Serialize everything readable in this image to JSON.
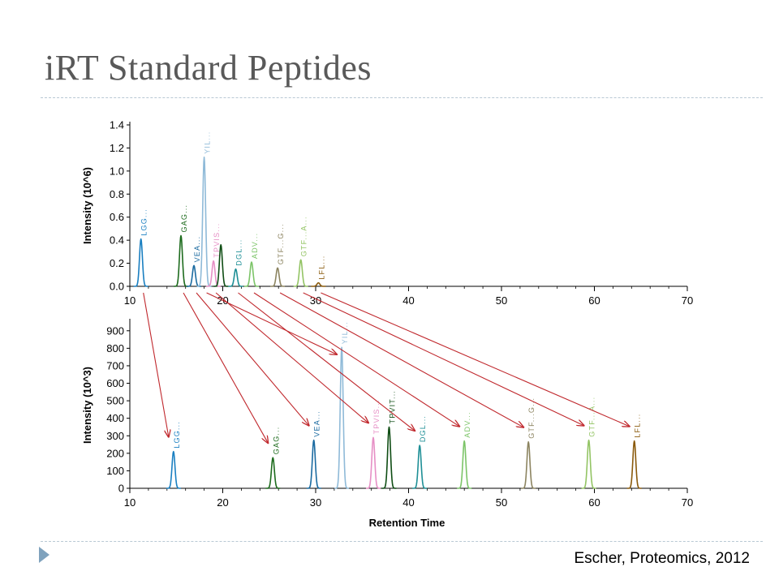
{
  "slide": {
    "title": "iRT Standard Peptides",
    "citation": "Escher, Proteomics, 2012"
  },
  "colors": {
    "axis": "#000000",
    "arrow": "#c0282d",
    "title": "#595959"
  },
  "chart_data": [
    {
      "type": "line",
      "ylabel": "Intensity (10^6)",
      "xlim": [
        10,
        70
      ],
      "ylim": [
        0,
        1.4
      ],
      "x_ticks": [
        10,
        20,
        30,
        40,
        50,
        60,
        70
      ],
      "y_ticks": [
        0.0,
        0.2,
        0.4,
        0.6,
        0.8,
        1.0,
        1.2,
        1.4
      ],
      "y_tick_labels": [
        "0.0",
        "0.2",
        "0.4",
        "0.6",
        "0.8",
        "1.0",
        "1.2",
        "1.4"
      ],
      "peaks": [
        {
          "label": "LGG...",
          "x": 11.2,
          "y": 0.41,
          "color": "#1a7fc1"
        },
        {
          "label": "GAG...",
          "x": 15.5,
          "y": 0.44,
          "color": "#1d6b1d"
        },
        {
          "label": "VEA...",
          "x": 16.9,
          "y": 0.18,
          "color": "#1a6aa0"
        },
        {
          "label": "YIL...",
          "x": 18.0,
          "y": 1.12,
          "color": "#8fbad8"
        },
        {
          "label": "TPVIS...",
          "x": 19.0,
          "y": 0.22,
          "color": "#e68fc5"
        },
        {
          "label": "",
          "x": 19.8,
          "y": 0.36,
          "color": "#0f4d14"
        },
        {
          "label": "DGL...",
          "x": 21.4,
          "y": 0.15,
          "color": "#1e8f96"
        },
        {
          "label": "ADV...",
          "x": 23.1,
          "y": 0.21,
          "color": "#7cc468"
        },
        {
          "label": "GTF...G...",
          "x": 25.9,
          "y": 0.16,
          "color": "#8c8460"
        },
        {
          "label": "GTF...A...",
          "x": 28.4,
          "y": 0.23,
          "color": "#93c464"
        },
        {
          "label": "LFL...",
          "x": 30.3,
          "y": 0.03,
          "color": "#8a5a0c"
        }
      ]
    },
    {
      "type": "line",
      "xlabel": "Retention Time",
      "ylabel": "Intensity (10^3)",
      "xlim": [
        10,
        70
      ],
      "ylim": [
        0,
        950
      ],
      "x_ticks": [
        10,
        20,
        30,
        40,
        50,
        60,
        70
      ],
      "y_ticks": [
        0,
        100,
        200,
        300,
        400,
        500,
        600,
        700,
        800,
        900
      ],
      "y_tick_labels": [
        "0",
        "100",
        "200",
        "300",
        "400",
        "500",
        "600",
        "700",
        "800",
        "900"
      ],
      "peaks": [
        {
          "label": "LGG...",
          "x": 14.7,
          "y": 210,
          "color": "#1a7fc1"
        },
        {
          "label": "GAG...",
          "x": 25.4,
          "y": 175,
          "color": "#1d6b1d"
        },
        {
          "label": "VEA...",
          "x": 29.8,
          "y": 275,
          "color": "#1a6aa0"
        },
        {
          "label": "YIL...",
          "x": 32.8,
          "y": 805,
          "color": "#8fbad8"
        },
        {
          "label": "TPVIS...",
          "x": 36.2,
          "y": 290,
          "color": "#e68fc5"
        },
        {
          "label": "TPVIT...",
          "x": 37.9,
          "y": 350,
          "color": "#0f4d14"
        },
        {
          "label": "DGL...",
          "x": 41.2,
          "y": 245,
          "color": "#1e8f96"
        },
        {
          "label": "ADV...",
          "x": 46.0,
          "y": 270,
          "color": "#7cc468"
        },
        {
          "label": "GTF...G...",
          "x": 52.9,
          "y": 265,
          "color": "#8c8460"
        },
        {
          "label": "GTF...A...",
          "x": 59.4,
          "y": 275,
          "color": "#93c464"
        },
        {
          "label": "LFL...",
          "x": 64.3,
          "y": 270,
          "color": "#8a5a0c"
        }
      ]
    }
  ]
}
